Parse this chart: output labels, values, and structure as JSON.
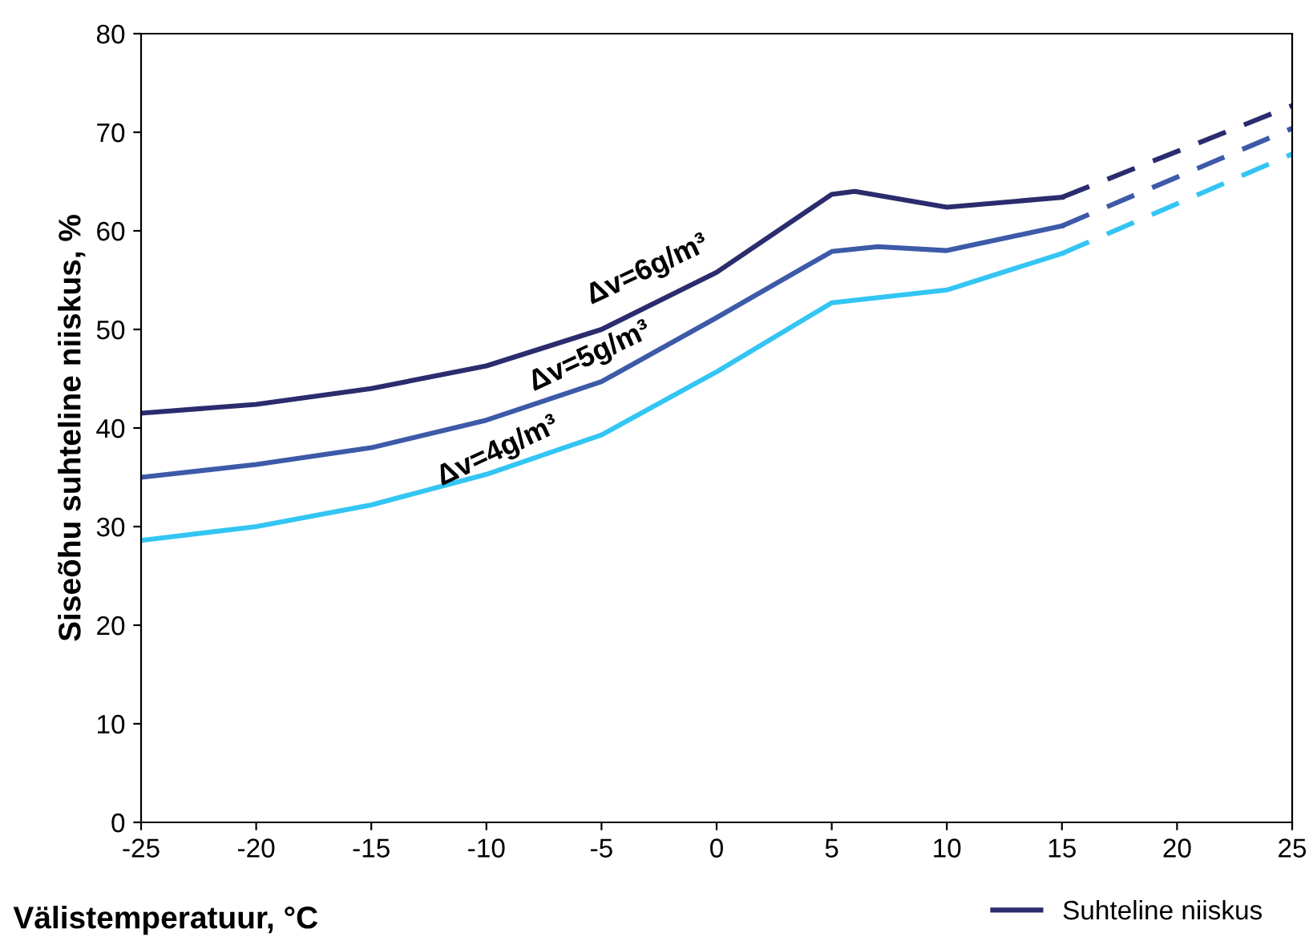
{
  "chart_data": {
    "type": "line",
    "xlabel": "Välistemperatuur, °C",
    "ylabel": "Siseõhu suhteline niiskus, %",
    "xlim": [
      -25,
      25
    ],
    "xticks": [
      -25,
      -20,
      -15,
      -10,
      -5,
      0,
      5,
      10,
      15,
      20,
      25
    ],
    "ylim": [
      0,
      80
    ],
    "yticks": [
      0,
      10,
      20,
      30,
      40,
      50,
      60,
      70,
      80
    ],
    "grid": false,
    "legend": "bottom right",
    "marker": "none",
    "series": [
      {
        "name": "Suhteline niiskus",
        "color": "#2b2c6e",
        "line_style": "solid",
        "x": [
          -25,
          -20,
          -15,
          -10,
          -5,
          0,
          5,
          6,
          10,
          15
        ],
        "values": [
          41.5,
          42.4,
          44,
          46.3,
          50,
          55.8,
          63.7,
          64,
          62.4,
          63.4
        ]
      },
      {
        "color": "#2b2c6e",
        "line_style": "dashed",
        "x": [
          15,
          25
        ],
        "values": [
          63.4,
          72.7
        ]
      },
      {
        "color": "#3d5aa8",
        "line_style": "solid",
        "x": [
          -25,
          -20,
          -15,
          -10,
          -5,
          0,
          5,
          7,
          10,
          15
        ],
        "values": [
          35,
          36.3,
          38,
          40.8,
          44.7,
          51.2,
          57.9,
          58.4,
          58,
          60.5
        ]
      },
      {
        "color": "#3d5aa8",
        "line_style": "dashed",
        "x": [
          15,
          25
        ],
        "values": [
          60.5,
          70.4
        ]
      },
      {
        "color": "#33c5f3",
        "line_style": "solid",
        "x": [
          -25,
          -20,
          -15,
          -10,
          -5,
          0,
          5,
          10,
          15
        ],
        "values": [
          28.6,
          30,
          32.2,
          35.3,
          39.3,
          45.7,
          52.7,
          54,
          57.7
        ]
      },
      {
        "color": "#33c5f3",
        "line_style": "dashed",
        "x": [
          15,
          25
        ],
        "values": [
          57.7,
          67.8
        ]
      }
    ],
    "annotations": [
      "Δv=6g/m³",
      "Δv=5g/m³",
      "Δv=4g/m³"
    ]
  }
}
